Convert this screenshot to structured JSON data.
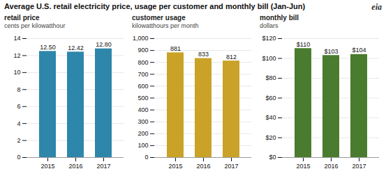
{
  "title": "Average U.S. retail electricity price, usage per customer and monthly bill (Jan-Jun)",
  "annotations": [
    "eia"
  ],
  "chart_data": [
    {
      "type": "bar",
      "title": "retail price",
      "subtitle": "cents per kilowatthour",
      "categories": [
        "2015",
        "2016",
        "2017"
      ],
      "values": [
        12.5,
        12.42,
        12.8
      ],
      "value_labels": [
        "12.50",
        "12.42",
        "12.80"
      ],
      "color": "#2e86ab",
      "ylim": [
        0,
        14
      ],
      "yticks": [
        0,
        2,
        4,
        6,
        8,
        10,
        12,
        14
      ],
      "grid": true,
      "data_labels": true
    },
    {
      "type": "bar",
      "title": "customer usage",
      "subtitle": "kilowatthours per month",
      "categories": [
        "2015",
        "2016",
        "2017"
      ],
      "values": [
        881,
        833,
        812
      ],
      "color": "#c9a227",
      "ylim": [
        0,
        1000
      ],
      "yticks": [
        0,
        100,
        200,
        300,
        400,
        500,
        600,
        700,
        800,
        900,
        {
          "value": 1000,
          "label": "1,000"
        }
      ],
      "grid": true,
      "data_labels": true
    },
    {
      "type": "bar",
      "title": "monthly bill",
      "subtitle": "dollars",
      "categories": [
        "2015",
        "2016",
        "2017"
      ],
      "values": [
        110,
        103,
        104
      ],
      "value_labels": [
        "$110",
        "$103",
        "$104"
      ],
      "color": "#4a7c2f",
      "ylim": [
        0,
        120
      ],
      "yticks": [
        {
          "value": 0,
          "label": "$0"
        },
        {
          "value": 20,
          "label": "$20"
        },
        {
          "value": 40,
          "label": "$40"
        },
        {
          "value": 60,
          "label": "$60"
        },
        {
          "value": 80,
          "label": "$80"
        },
        {
          "value": 100,
          "label": "$100"
        },
        {
          "value": 120,
          "label": "$120"
        }
      ],
      "grid": true,
      "data_labels": true
    }
  ]
}
